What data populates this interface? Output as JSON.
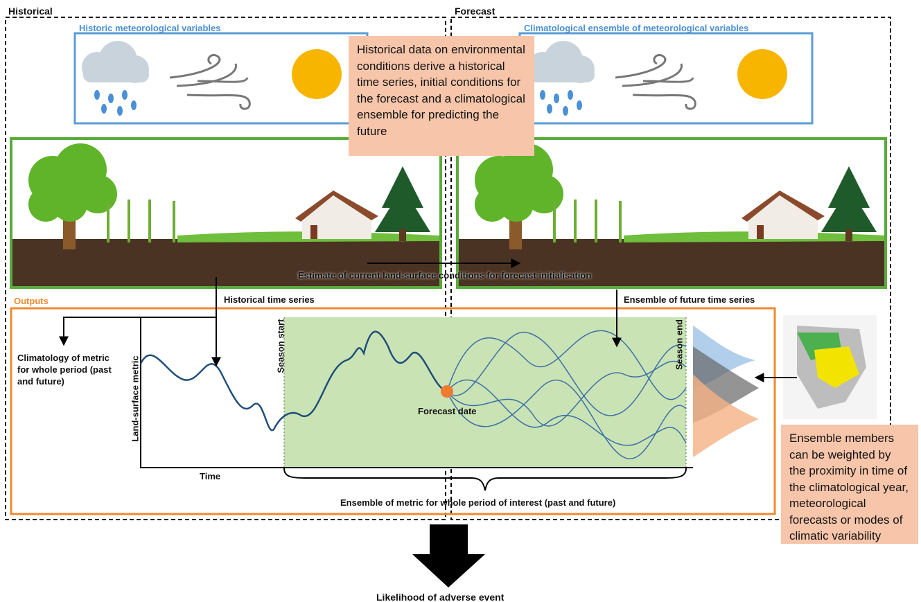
{
  "sections": {
    "historical": "Historical",
    "forecast": "Forecast"
  },
  "panels": {
    "historic_met": "Historic meteorological variables",
    "climatological_met": "Climatological ensemble of meteorological variables"
  },
  "callouts": [
    "Historical data on environmental conditions derive a historical time series,  initial conditions for the forecast and a climatological ensemble for predicting  the future",
    "Ensemble members can be weighted by the proximity in time of the climatological year, meteorological forecasts or modes of climatic variability"
  ],
  "arrow_labels": {
    "initialisation": "Estimate of current land-surface conditions for forecast initialisation",
    "historical_series": "Historical time series",
    "future_series": "Ensemble of future time series"
  },
  "outputs": {
    "title": "Outputs",
    "climatology": "Climatology of metric for whole period (past and future)",
    "y_axis": "Land-surface metric",
    "x_axis": "Time",
    "season_start": "Season start",
    "season_end": "Season end",
    "forecast_date": "Forecast date",
    "brace_label": "Ensemble of metric for whole period of interest (past and future)"
  },
  "result": "Likelihood of adverse event"
}
